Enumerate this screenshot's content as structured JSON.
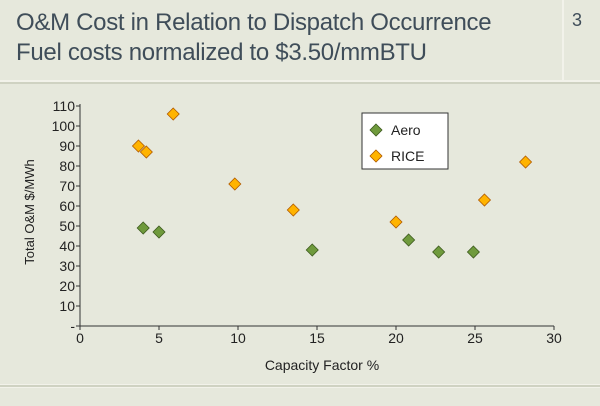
{
  "header": {
    "title_line1": "O&M Cost in Relation to Dispatch Occurrence",
    "title_line2": "Fuel costs normalized to $3.50/mmBTU",
    "slide_number": "3"
  },
  "chart_data": {
    "type": "scatter",
    "xlabel": "Capacity Factor %",
    "ylabel": "Total O&M $/MWh",
    "xlim": [
      0,
      30
    ],
    "ylim": [
      0,
      110
    ],
    "x_ticks": [
      "0",
      "5",
      "10",
      "15",
      "20",
      "25",
      "30"
    ],
    "y_ticks": [
      "-",
      "10",
      "20",
      "30",
      "40",
      "50",
      "60",
      "70",
      "80",
      "90",
      "100",
      "110"
    ],
    "legend_position": "top-right",
    "series": [
      {
        "name": "Aero",
        "color": "#6f9a3c",
        "points": [
          [
            4.0,
            49
          ],
          [
            5.0,
            47
          ],
          [
            14.7,
            38
          ],
          [
            20.8,
            43
          ],
          [
            22.7,
            37
          ],
          [
            24.9,
            37
          ]
        ]
      },
      {
        "name": "RICE",
        "color": "#ffb300",
        "points": [
          [
            3.7,
            90
          ],
          [
            4.2,
            87
          ],
          [
            5.9,
            106
          ],
          [
            9.8,
            71
          ],
          [
            13.5,
            58
          ],
          [
            20.0,
            52
          ],
          [
            25.6,
            63
          ],
          [
            28.2,
            82
          ]
        ]
      }
    ]
  }
}
